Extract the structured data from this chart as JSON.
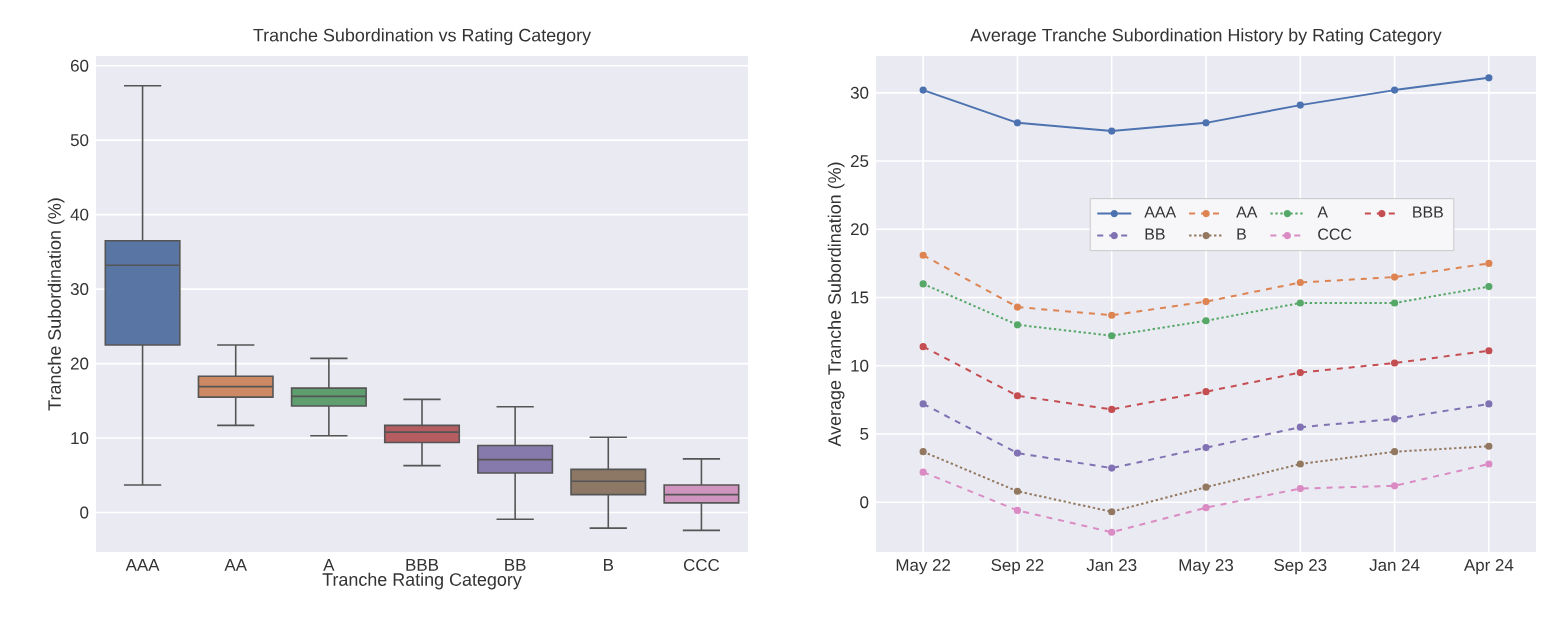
{
  "chart_data": [
    {
      "type": "box",
      "title": "Tranche Subordination vs Rating Category",
      "xlabel": "Tranche Rating Category",
      "ylabel": "Tranche Subordination (%)",
      "categories": [
        "AAA",
        "AA",
        "A",
        "BBB",
        "BB",
        "B",
        "CCC"
      ],
      "colors": [
        "#5875a4",
        "#cc8963",
        "#5f9e6e",
        "#b55d60",
        "#857aab",
        "#8d7866",
        "#d095bf"
      ],
      "boxes": [
        {
          "low": 3.7,
          "q1": 22.5,
          "median": 33.2,
          "q3": 36.5,
          "high": 57.3
        },
        {
          "low": 11.7,
          "q1": 15.5,
          "median": 16.9,
          "q3": 18.3,
          "high": 22.5
        },
        {
          "low": 10.3,
          "q1": 14.3,
          "median": 15.6,
          "q3": 16.7,
          "high": 20.7
        },
        {
          "low": 6.3,
          "q1": 9.4,
          "median": 10.8,
          "q3": 11.7,
          "high": 15.2
        },
        {
          "low": -0.9,
          "q1": 5.3,
          "median": 7.1,
          "q3": 9.0,
          "high": 14.2
        },
        {
          "low": -2.1,
          "q1": 2.4,
          "median": 4.2,
          "q3": 5.8,
          "high": 10.1
        },
        {
          "low": -2.4,
          "q1": 1.3,
          "median": 2.4,
          "q3": 3.7,
          "high": 7.2
        }
      ],
      "ylim": [
        -5.3,
        61.3
      ],
      "yticks": [
        0,
        10,
        20,
        30,
        40,
        50,
        60
      ],
      "grid": "y"
    },
    {
      "type": "line",
      "title": "Average Tranche Subordination History by Rating Category",
      "ylabel": "Average Tranche Subordination (%)",
      "categories": [
        "May 22",
        "Sep 22",
        "Jan 23",
        "May 23",
        "Sep 23",
        "Jan 24",
        "Apr 24"
      ],
      "series": [
        {
          "name": "AAA",
          "color": "#4c72b0",
          "line_style": "solid",
          "values": [
            30.2,
            27.8,
            27.2,
            27.8,
            29.1,
            30.2,
            31.1
          ]
        },
        {
          "name": "AA",
          "color": "#dd8452",
          "line_style": "dashed",
          "values": [
            18.1,
            14.3,
            13.7,
            14.7,
            16.1,
            16.5,
            17.5
          ]
        },
        {
          "name": "A",
          "color": "#55a868",
          "line_style": "dotted",
          "values": [
            16.0,
            13.0,
            12.2,
            13.3,
            14.6,
            14.6,
            15.8
          ]
        },
        {
          "name": "BBB",
          "color": "#c44e52",
          "line_style": "dashed",
          "values": [
            11.4,
            7.8,
            6.8,
            8.1,
            9.5,
            10.2,
            11.1
          ]
        },
        {
          "name": "BB",
          "color": "#8172b3",
          "line_style": "dashed",
          "values": [
            7.2,
            3.6,
            2.5,
            4.0,
            5.5,
            6.1,
            7.2
          ]
        },
        {
          "name": "B",
          "color": "#937860",
          "line_style": "dotted",
          "values": [
            3.7,
            0.8,
            -0.7,
            1.1,
            2.8,
            3.7,
            4.1
          ]
        },
        {
          "name": "CCC",
          "color": "#da8bc3",
          "line_style": "dashed",
          "values": [
            2.2,
            -0.6,
            -2.2,
            -0.4,
            1.0,
            1.2,
            2.8
          ]
        }
      ],
      "ylim": [
        -3.65,
        32.7
      ],
      "yticks": [
        0,
        5,
        10,
        15,
        20,
        25,
        30
      ],
      "grid": true,
      "marker": "circle",
      "legend": "center"
    }
  ]
}
